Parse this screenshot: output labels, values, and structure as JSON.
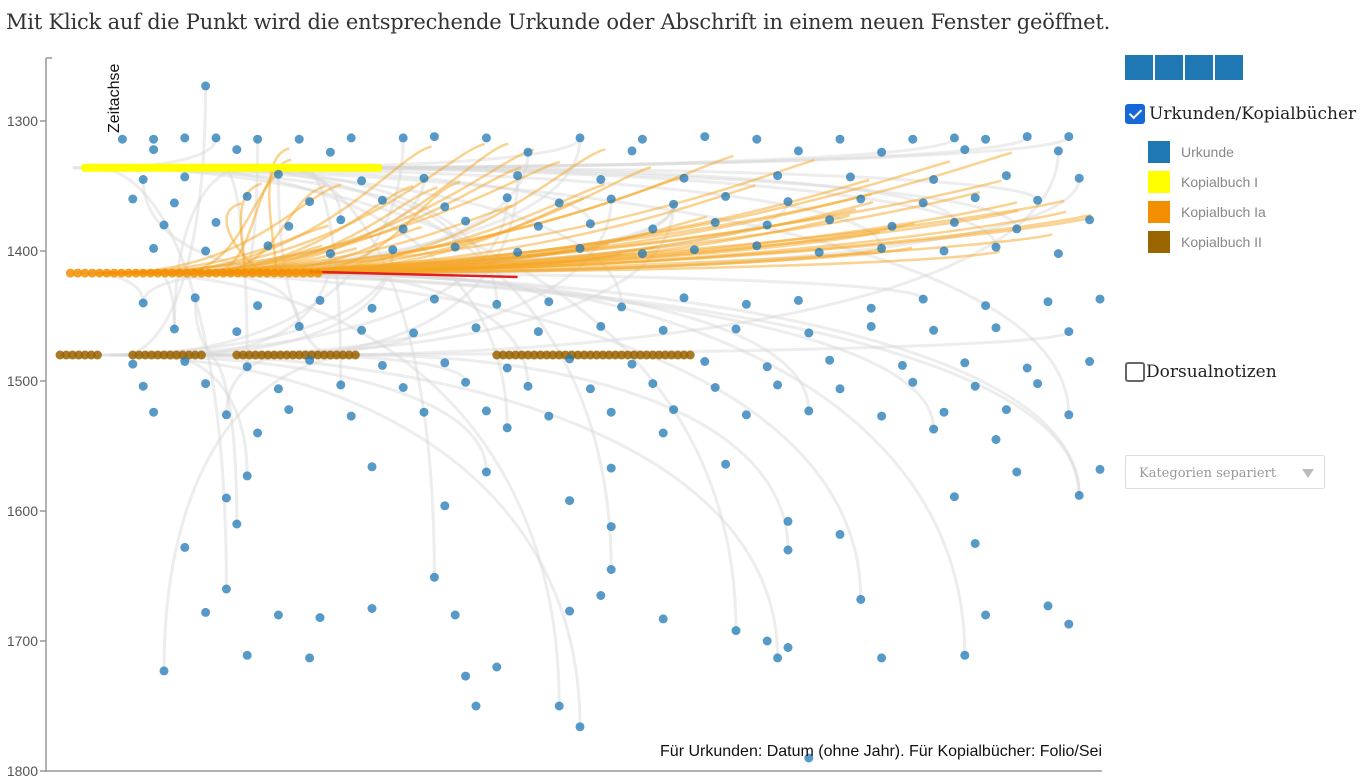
{
  "headline": "Mit Klick auf die Punkt wird die entsprechende Urkunde oder Abschrift in einem neuen Fenster geöffnet.",
  "controls": {
    "urkunden_label": "Urkunden/Kopialbücher",
    "urkunden_checked": true,
    "dorsual_label": "Dorsualnotizen",
    "dorsual_checked": false,
    "select_value": "Kategorien separiert",
    "segments": 4
  },
  "legend": [
    {
      "label": "Urkunde",
      "color": "#1f77b4"
    },
    {
      "label": "Kopialbuch I",
      "color": "#ffff00"
    },
    {
      "label": "Kopialbuch Ia",
      "color": "#f28e00"
    },
    {
      "label": "Kopialbuch II",
      "color": "#9a6400"
    }
  ],
  "chart_data": {
    "type": "scatter",
    "ylabel": "Zeitachse",
    "xlabel": "Für Urkunden: Datum (ohne Jahr). Für Kopialbücher: Folio/Sei",
    "y_ticks": [
      1300,
      1400,
      1500,
      1600,
      1700,
      1800
    ],
    "ylim": [
      1800,
      1250
    ],
    "xlim": [
      0,
      1
    ],
    "grid": false,
    "legend_position": "right",
    "series": [
      {
        "name": "Urkunde",
        "color": "#1f77b4",
        "note": "several hundred document dates, densest between 1290 and 1540; representative sample",
        "points": [
          [
            0.14,
            1273
          ],
          [
            0.06,
            1314
          ],
          [
            0.09,
            1314
          ],
          [
            0.12,
            1313
          ],
          [
            0.15,
            1313
          ],
          [
            0.19,
            1314
          ],
          [
            0.23,
            1314
          ],
          [
            0.28,
            1313
          ],
          [
            0.33,
            1313
          ],
          [
            0.36,
            1312
          ],
          [
            0.41,
            1313
          ],
          [
            0.5,
            1313
          ],
          [
            0.56,
            1314
          ],
          [
            0.62,
            1312
          ],
          [
            0.67,
            1314
          ],
          [
            0.75,
            1314
          ],
          [
            0.82,
            1314
          ],
          [
            0.86,
            1313
          ],
          [
            0.89,
            1314
          ],
          [
            0.93,
            1312
          ],
          [
            0.97,
            1312
          ],
          [
            0.09,
            1322
          ],
          [
            0.17,
            1322
          ],
          [
            0.26,
            1324
          ],
          [
            0.45,
            1324
          ],
          [
            0.55,
            1323
          ],
          [
            0.71,
            1323
          ],
          [
            0.79,
            1324
          ],
          [
            0.87,
            1322
          ],
          [
            0.96,
            1323
          ],
          [
            0.08,
            1345
          ],
          [
            0.12,
            1343
          ],
          [
            0.21,
            1341
          ],
          [
            0.29,
            1346
          ],
          [
            0.35,
            1344
          ],
          [
            0.44,
            1342
          ],
          [
            0.52,
            1345
          ],
          [
            0.6,
            1344
          ],
          [
            0.69,
            1342
          ],
          [
            0.76,
            1343
          ],
          [
            0.84,
            1345
          ],
          [
            0.91,
            1342
          ],
          [
            0.98,
            1344
          ],
          [
            0.07,
            1360
          ],
          [
            0.11,
            1363
          ],
          [
            0.18,
            1358
          ],
          [
            0.24,
            1362
          ],
          [
            0.31,
            1361
          ],
          [
            0.37,
            1366
          ],
          [
            0.43,
            1359
          ],
          [
            0.48,
            1363
          ],
          [
            0.53,
            1360
          ],
          [
            0.59,
            1364
          ],
          [
            0.64,
            1358
          ],
          [
            0.7,
            1362
          ],
          [
            0.77,
            1360
          ],
          [
            0.83,
            1363
          ],
          [
            0.88,
            1359
          ],
          [
            0.94,
            1361
          ],
          [
            0.1,
            1380
          ],
          [
            0.15,
            1378
          ],
          [
            0.22,
            1381
          ],
          [
            0.27,
            1376
          ],
          [
            0.33,
            1383
          ],
          [
            0.39,
            1377
          ],
          [
            0.46,
            1381
          ],
          [
            0.51,
            1379
          ],
          [
            0.57,
            1383
          ],
          [
            0.63,
            1378
          ],
          [
            0.68,
            1380
          ],
          [
            0.74,
            1376
          ],
          [
            0.8,
            1381
          ],
          [
            0.86,
            1378
          ],
          [
            0.92,
            1383
          ],
          [
            0.99,
            1376
          ],
          [
            0.09,
            1398
          ],
          [
            0.14,
            1400
          ],
          [
            0.2,
            1396
          ],
          [
            0.26,
            1402
          ],
          [
            0.32,
            1399
          ],
          [
            0.38,
            1397
          ],
          [
            0.44,
            1401
          ],
          [
            0.5,
            1398
          ],
          [
            0.56,
            1402
          ],
          [
            0.61,
            1399
          ],
          [
            0.67,
            1396
          ],
          [
            0.73,
            1401
          ],
          [
            0.79,
            1398
          ],
          [
            0.85,
            1400
          ],
          [
            0.9,
            1397
          ],
          [
            0.96,
            1402
          ],
          [
            0.08,
            1440
          ],
          [
            0.13,
            1436
          ],
          [
            0.19,
            1442
          ],
          [
            0.25,
            1438
          ],
          [
            0.3,
            1444
          ],
          [
            0.36,
            1437
          ],
          [
            0.42,
            1441
          ],
          [
            0.47,
            1439
          ],
          [
            0.54,
            1443
          ],
          [
            0.6,
            1436
          ],
          [
            0.66,
            1441
          ],
          [
            0.71,
            1438
          ],
          [
            0.78,
            1444
          ],
          [
            0.83,
            1437
          ],
          [
            0.89,
            1442
          ],
          [
            0.95,
            1439
          ],
          [
            1.0,
            1437
          ],
          [
            0.11,
            1460
          ],
          [
            0.17,
            1462
          ],
          [
            0.23,
            1458
          ],
          [
            0.29,
            1461
          ],
          [
            0.34,
            1463
          ],
          [
            0.4,
            1459
          ],
          [
            0.46,
            1462
          ],
          [
            0.52,
            1458
          ],
          [
            0.58,
            1461
          ],
          [
            0.65,
            1460
          ],
          [
            0.72,
            1463
          ],
          [
            0.78,
            1458
          ],
          [
            0.84,
            1461
          ],
          [
            0.9,
            1459
          ],
          [
            0.97,
            1462
          ],
          [
            0.07,
            1487
          ],
          [
            0.12,
            1485
          ],
          [
            0.18,
            1489
          ],
          [
            0.24,
            1484
          ],
          [
            0.31,
            1488
          ],
          [
            0.37,
            1486
          ],
          [
            0.43,
            1490
          ],
          [
            0.49,
            1483
          ],
          [
            0.55,
            1487
          ],
          [
            0.62,
            1485
          ],
          [
            0.68,
            1489
          ],
          [
            0.74,
            1484
          ],
          [
            0.81,
            1488
          ],
          [
            0.87,
            1486
          ],
          [
            0.93,
            1490
          ],
          [
            0.99,
            1485
          ],
          [
            0.08,
            1504
          ],
          [
            0.14,
            1502
          ],
          [
            0.21,
            1506
          ],
          [
            0.27,
            1503
          ],
          [
            0.33,
            1505
          ],
          [
            0.39,
            1501
          ],
          [
            0.45,
            1504
          ],
          [
            0.51,
            1506
          ],
          [
            0.57,
            1502
          ],
          [
            0.63,
            1505
          ],
          [
            0.69,
            1503
          ],
          [
            0.75,
            1506
          ],
          [
            0.82,
            1501
          ],
          [
            0.88,
            1504
          ],
          [
            0.94,
            1502
          ],
          [
            0.09,
            1524
          ],
          [
            0.16,
            1526
          ],
          [
            0.22,
            1522
          ],
          [
            0.28,
            1527
          ],
          [
            0.35,
            1524
          ],
          [
            0.41,
            1523
          ],
          [
            0.47,
            1527
          ],
          [
            0.53,
            1524
          ],
          [
            0.59,
            1522
          ],
          [
            0.66,
            1526
          ],
          [
            0.72,
            1523
          ],
          [
            0.79,
            1527
          ],
          [
            0.85,
            1524
          ],
          [
            0.91,
            1522
          ],
          [
            0.97,
            1526
          ],
          [
            0.19,
            1540
          ],
          [
            0.43,
            1536
          ],
          [
            0.58,
            1540
          ],
          [
            0.84,
            1537
          ],
          [
            0.9,
            1545
          ],
          [
            0.18,
            1573
          ],
          [
            0.3,
            1566
          ],
          [
            0.41,
            1570
          ],
          [
            0.53,
            1567
          ],
          [
            0.64,
            1564
          ],
          [
            0.92,
            1570
          ],
          [
            1.0,
            1568
          ],
          [
            0.16,
            1590
          ],
          [
            0.37,
            1596
          ],
          [
            0.49,
            1592
          ],
          [
            0.86,
            1589
          ],
          [
            0.98,
            1588
          ],
          [
            0.17,
            1610
          ],
          [
            0.53,
            1612
          ],
          [
            0.7,
            1608
          ],
          [
            0.88,
            1625
          ],
          [
            0.12,
            1628
          ],
          [
            0.7,
            1630
          ],
          [
            0.75,
            1618
          ],
          [
            0.36,
            1651
          ],
          [
            0.53,
            1645
          ],
          [
            0.16,
            1660
          ],
          [
            0.52,
            1665
          ],
          [
            0.77,
            1668
          ],
          [
            0.95,
            1673
          ],
          [
            0.14,
            1678
          ],
          [
            0.21,
            1680
          ],
          [
            0.25,
            1682
          ],
          [
            0.3,
            1675
          ],
          [
            0.38,
            1680
          ],
          [
            0.49,
            1677
          ],
          [
            0.58,
            1683
          ],
          [
            0.65,
            1692
          ],
          [
            0.68,
            1700
          ],
          [
            0.89,
            1680
          ],
          [
            0.97,
            1687
          ],
          [
            0.18,
            1711
          ],
          [
            0.24,
            1713
          ],
          [
            0.42,
            1720
          ],
          [
            0.69,
            1713
          ],
          [
            0.79,
            1713
          ],
          [
            0.87,
            1711
          ],
          [
            0.1,
            1723
          ],
          [
            0.39,
            1727
          ],
          [
            0.4,
            1750
          ],
          [
            0.48,
            1750
          ],
          [
            0.5,
            1766
          ],
          [
            0.7,
            1705
          ],
          [
            0.72,
            1790
          ]
        ]
      },
      {
        "name": "Kopialbuch I",
        "color": "#ffff00",
        "row_year": 1336,
        "x_range": [
          0.02,
          0.31
        ]
      },
      {
        "name": "Kopialbuch Ia",
        "color": "#f28e00",
        "row_year": 1417,
        "x_range": [
          0.01,
          0.25
        ]
      },
      {
        "name": "Kopialbuch II",
        "color": "#9a6400",
        "row_year": 1480,
        "segments": [
          [
            0.0,
            0.04
          ],
          [
            0.07,
            0.14
          ],
          [
            0.17,
            0.29
          ],
          [
            0.42,
            0.61
          ]
        ]
      }
    ]
  }
}
